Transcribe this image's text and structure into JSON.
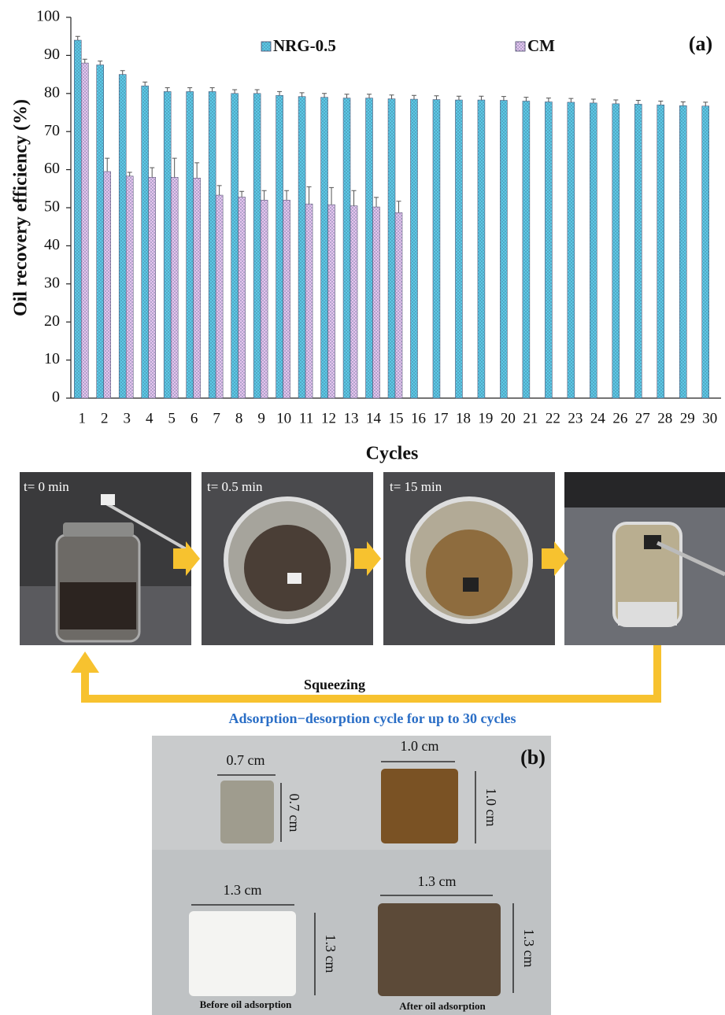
{
  "chart_data": {
    "type": "bar",
    "annotation": "(a)",
    "xlabel": "Cycles",
    "ylabel": "Oil recovery efficiency (%)",
    "categories": [
      "1",
      "2",
      "3",
      "4",
      "5",
      "6",
      "7",
      "8",
      "9",
      "10",
      "11",
      "12",
      "13",
      "14",
      "15",
      "16",
      "17",
      "18",
      "19",
      "20",
      "21",
      "22",
      "23",
      "24",
      "26",
      "27",
      "28",
      "29",
      "30"
    ],
    "series": [
      {
        "name": "NRG-0.5",
        "color": "#5cc9e6",
        "values": [
          94,
          87.5,
          85,
          82,
          80.5,
          80.5,
          80.5,
          80,
          80,
          79.5,
          79.2,
          79,
          78.8,
          78.8,
          78.6,
          78.5,
          78.4,
          78.3,
          78.3,
          78.2,
          78,
          77.8,
          77.7,
          77.5,
          77.3,
          77.2,
          77,
          76.8,
          76.7
        ],
        "errors": [
          1,
          1,
          1,
          1,
          1,
          1,
          1,
          1,
          1,
          1,
          1,
          1,
          1,
          1,
          1,
          1,
          1,
          1,
          1,
          1,
          1,
          1,
          1,
          1,
          1,
          1,
          1,
          1,
          1
        ]
      },
      {
        "name": "CM",
        "color": "#e6c4ef",
        "values": [
          88,
          59.5,
          58.3,
          58,
          58,
          57.8,
          53.3,
          52.8,
          52,
          52,
          51,
          50.8,
          50.5,
          50.2,
          48.7,
          null,
          null,
          null,
          null,
          null,
          null,
          null,
          null,
          null,
          null,
          null,
          null,
          null,
          null
        ],
        "errors": [
          1,
          3.5,
          1,
          2.5,
          5,
          4,
          2.5,
          1.5,
          2.5,
          2.5,
          4.5,
          4.5,
          4,
          2.5,
          3,
          null,
          null,
          null,
          null,
          null,
          null,
          null,
          null,
          null,
          null,
          null,
          null,
          null,
          null
        ]
      }
    ],
    "ylim": [
      0,
      100
    ],
    "yticks": [
      0,
      10,
      20,
      30,
      40,
      50,
      60,
      70,
      80,
      90,
      100
    ],
    "grid": false
  },
  "photos": {
    "frames": [
      "t= 0 min",
      "t= 0.5 min",
      "t= 15 min"
    ],
    "step": "Squeezing",
    "caption": "Adsorption−desorption  cycle for up to 30 cycles"
  },
  "samples": {
    "label": "(b)",
    "dimensions": [
      "0.7 cm",
      "0.7 cm",
      "1.0 cm",
      "1.0 cm",
      "1.3 cm",
      "1.3 cm",
      "1.3 cm",
      "1.3 cm"
    ],
    "captions": [
      "Before oil adsorption",
      "After oil adsorption"
    ]
  }
}
